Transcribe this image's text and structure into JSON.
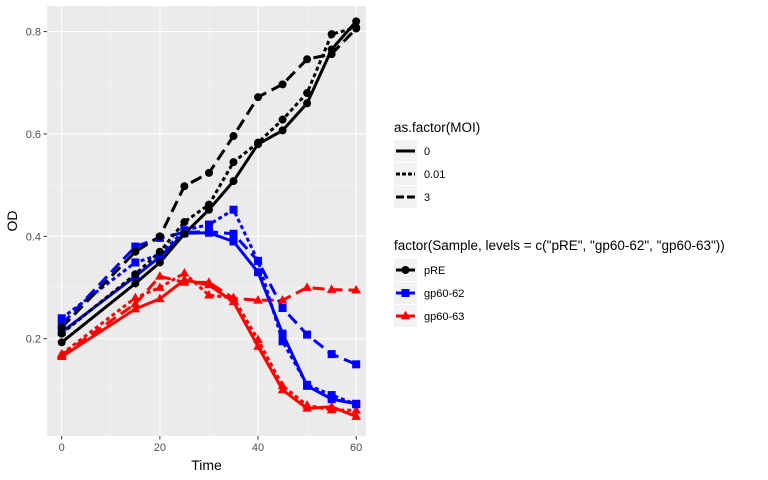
{
  "chart_data": {
    "type": "line",
    "xlabel": "Time",
    "ylabel": "OD",
    "xlim": [
      -3,
      62
    ],
    "ylim": [
      0.01,
      0.85
    ],
    "x_ticks": [
      0,
      20,
      40,
      60
    ],
    "x_tick_labels": [
      "0",
      "20",
      "40",
      "60"
    ],
    "y_ticks": [
      0.2,
      0.4,
      0.6,
      0.8
    ],
    "y_tick_labels": [
      "0.2",
      "0.4",
      "0.6",
      "0.8"
    ],
    "grid": true,
    "legend_position": "right",
    "legends": {
      "linetype": {
        "title": "as.factor(MOI)",
        "entries": [
          "0",
          "0.01",
          "3"
        ]
      },
      "sample": {
        "title": "factor(Sample, levels = c(\"pRE\", \"gp60-62\", \"gp60-63\"))",
        "entries": [
          "pRE",
          "gp60-62",
          "gp60-63"
        ]
      }
    },
    "colors": {
      "pRE": "#000000",
      "gp60-62": "#0000FF",
      "gp60-63": "#FF0000"
    },
    "x": [
      0,
      15,
      20,
      25,
      30,
      35,
      40,
      45,
      50,
      55,
      60
    ],
    "series": [
      {
        "sample": "pRE",
        "moi": "0",
        "shape": "circle",
        "y": [
          0.193,
          0.308,
          0.349,
          0.405,
          0.452,
          0.508,
          0.58,
          0.607,
          0.66,
          0.765,
          0.82
        ]
      },
      {
        "sample": "pRE",
        "moi": "0.01",
        "shape": "circle",
        "y": [
          0.21,
          0.326,
          0.37,
          0.428,
          0.462,
          0.545,
          0.583,
          0.628,
          0.68,
          0.795,
          0.808
        ]
      },
      {
        "sample": "pRE",
        "moi": "3",
        "shape": "circle",
        "y": [
          0.222,
          0.37,
          0.4,
          0.498,
          0.524,
          0.596,
          0.672,
          0.697,
          0.746,
          0.756,
          0.806
        ]
      },
      {
        "sample": "gp60-62",
        "moi": "0",
        "shape": "square",
        "y": [
          0.213,
          0.322,
          0.36,
          0.406,
          0.407,
          0.39,
          0.33,
          0.21,
          0.108,
          0.082,
          0.073
        ]
      },
      {
        "sample": "gp60-62",
        "moi": "0.01",
        "shape": "square",
        "y": [
          0.24,
          0.349,
          0.364,
          0.412,
          0.423,
          0.452,
          0.352,
          0.195,
          0.11,
          0.09,
          0.072
        ]
      },
      {
        "sample": "gp60-62",
        "moi": "3",
        "shape": "square",
        "y": [
          0.228,
          0.38,
          0.397,
          0.408,
          0.409,
          0.405,
          0.352,
          0.26,
          0.208,
          0.17,
          0.15
        ]
      },
      {
        "sample": "gp60-63",
        "moi": "0",
        "shape": "triangle",
        "y": [
          0.165,
          0.258,
          0.278,
          0.315,
          0.305,
          0.272,
          0.185,
          0.1,
          0.064,
          0.067,
          0.048
        ]
      },
      {
        "sample": "gp60-63",
        "moi": "0.01",
        "shape": "triangle",
        "y": [
          0.17,
          0.28,
          0.3,
          0.328,
          0.285,
          0.28,
          0.198,
          0.108,
          0.07,
          0.061,
          0.06
        ]
      },
      {
        "sample": "gp60-63",
        "moi": "3",
        "shape": "triangle",
        "y": [
          0.168,
          0.268,
          0.322,
          0.31,
          0.31,
          0.279,
          0.275,
          0.275,
          0.3,
          0.296,
          0.295
        ]
      }
    ]
  }
}
